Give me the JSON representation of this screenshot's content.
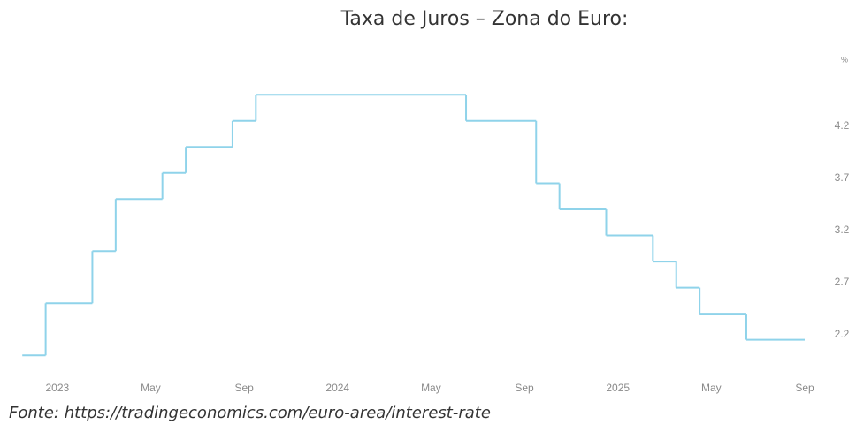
{
  "chart_data": {
    "type": "step",
    "title": "Taxa de Juros – Zona do Euro:",
    "source": "Fonte: https://tradingeconomics.com/euro-area/interest-rate",
    "y_unit": "%",
    "color": "#8fd3ea",
    "x": [
      "2022-11",
      "2022-12",
      "2023-02",
      "2023-03",
      "2023-05",
      "2023-06",
      "2023-08",
      "2023-09",
      "2024-06",
      "2024-09",
      "2024-10",
      "2024-12",
      "2025-02",
      "2025-03",
      "2025-04",
      "2025-06"
    ],
    "values": [
      2.0,
      2.5,
      3.0,
      3.5,
      3.75,
      4.0,
      4.25,
      4.5,
      4.25,
      3.65,
      3.4,
      3.15,
      2.9,
      2.65,
      2.4,
      2.15
    ],
    "xlim": [
      "2022-11",
      "2025-09"
    ],
    "xticks": [
      {
        "value": "2023-01",
        "label": "2023"
      },
      {
        "value": "2023-05",
        "label": "May"
      },
      {
        "value": "2023-09",
        "label": "Sep"
      },
      {
        "value": "2024-01",
        "label": "2024"
      },
      {
        "value": "2024-05",
        "label": "May"
      },
      {
        "value": "2024-09",
        "label": "Sep"
      },
      {
        "value": "2025-01",
        "label": "2025"
      },
      {
        "value": "2025-05",
        "label": "May"
      },
      {
        "value": "2025-09",
        "label": "Sep"
      }
    ],
    "ylim": [
      1.85,
      4.9
    ],
    "yticks": [
      2.2,
      2.7,
      3.2,
      3.7,
      4.2
    ]
  }
}
